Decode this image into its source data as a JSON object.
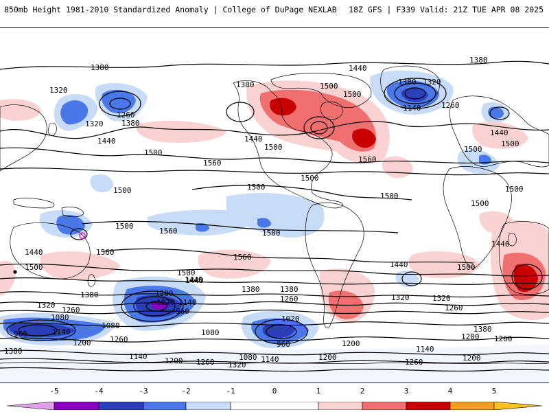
{
  "header": {
    "title": "850mb Height 1981-2010 Standardized Anomaly | College of DuPage NEXLAB",
    "run_info": "18Z GFS | F339 Valid: 21Z TUE APR 08 2025"
  },
  "colors": {
    "neg5": "#e0a0e8",
    "neg4": "#8a00c0",
    "neg3": "#2a3fb8",
    "neg2": "#4a78e8",
    "neg1": "#c8dcf8",
    "zero": "#ffffff",
    "pos1": "#fad2d2",
    "pos2": "#f07070",
    "pos3": "#c80000",
    "pos4": "#f0a020",
    "pos5": "#f8c020",
    "coast": "#000000",
    "contour": "#000000"
  },
  "colorbar": {
    "ticks": [
      "-5",
      "-4",
      "-3",
      "-2",
      "-1",
      "0",
      "1",
      "2",
      "3",
      "4",
      "5"
    ]
  },
  "contour_labels": [
    {
      "id": "l1",
      "text": "1380"
    },
    {
      "id": "l2",
      "text": "1320"
    },
    {
      "id": "l3",
      "text": "1260"
    },
    {
      "id": "l4",
      "text": "1320"
    },
    {
      "id": "l5",
      "text": "1380"
    },
    {
      "id": "l6",
      "text": "1440"
    },
    {
      "id": "l7",
      "text": "1500"
    },
    {
      "id": "l8",
      "text": "1380"
    },
    {
      "id": "l9",
      "text": "1440"
    },
    {
      "id": "l10",
      "text": "1500"
    },
    {
      "id": "l11",
      "text": "1560"
    },
    {
      "id": "l12",
      "text": "1500"
    },
    {
      "id": "l13",
      "text": "1440"
    },
    {
      "id": "l14",
      "text": "1500"
    },
    {
      "id": "l15",
      "text": "1380"
    },
    {
      "id": "l16",
      "text": "1320"
    },
    {
      "id": "l17",
      "text": "1260"
    },
    {
      "id": "l18",
      "text": "1140"
    },
    {
      "id": "l19",
      "text": "1380"
    },
    {
      "id": "l20",
      "text": "1440"
    },
    {
      "id": "l21",
      "text": "1500"
    },
    {
      "id": "l22",
      "text": "1500"
    },
    {
      "id": "l23",
      "text": "1560"
    },
    {
      "id": "l24",
      "text": "1500"
    },
    {
      "id": "l25",
      "text": "1500"
    },
    {
      "id": "l26",
      "text": "1500"
    },
    {
      "id": "l27",
      "text": "1500"
    },
    {
      "id": "l28",
      "text": "1500"
    },
    {
      "id": "l29",
      "text": "1500"
    },
    {
      "id": "l30",
      "text": "1500"
    },
    {
      "id": "l31",
      "text": "1560"
    },
    {
      "id": "l32",
      "text": "1500"
    },
    {
      "id": "l33",
      "text": "1440"
    },
    {
      "id": "l34",
      "text": "1560"
    },
    {
      "id": "l35",
      "text": "1560"
    },
    {
      "id": "l36",
      "text": "1440"
    },
    {
      "id": "l37",
      "text": "1500"
    },
    {
      "id": "l38",
      "text": "1500"
    },
    {
      "id": "l39",
      "text": "1440"
    },
    {
      "id": "l40",
      "text": "1380"
    },
    {
      "id": "l41",
      "text": "1320"
    },
    {
      "id": "l42",
      "text": "1260"
    },
    {
      "id": "l43",
      "text": "1080"
    },
    {
      "id": "l44",
      "text": "960"
    },
    {
      "id": "l45",
      "text": "1140"
    },
    {
      "id": "l46",
      "text": "1200"
    },
    {
      "id": "l47",
      "text": "1200"
    },
    {
      "id": "l48",
      "text": "1020"
    },
    {
      "id": "l49",
      "text": "1140"
    },
    {
      "id": "l50",
      "text": "960"
    },
    {
      "id": "l51",
      "text": "1080"
    },
    {
      "id": "l52",
      "text": "1080"
    },
    {
      "id": "l53",
      "text": "1260"
    },
    {
      "id": "l54",
      "text": "1440"
    },
    {
      "id": "l55",
      "text": "1380"
    },
    {
      "id": "l56",
      "text": "1260"
    },
    {
      "id": "l57",
      "text": "1020"
    },
    {
      "id": "l58",
      "text": "960"
    },
    {
      "id": "l59",
      "text": "1140"
    },
    {
      "id": "l60",
      "text": "1080"
    },
    {
      "id": "l61",
      "text": "1200"
    },
    {
      "id": "l62",
      "text": "1320"
    },
    {
      "id": "l63",
      "text": "1380"
    },
    {
      "id": "l64",
      "text": "1260"
    },
    {
      "id": "l65",
      "text": "1200"
    },
    {
      "id": "l66",
      "text": "1140"
    },
    {
      "id": "l67",
      "text": "1200"
    },
    {
      "id": "l68",
      "text": "1260"
    },
    {
      "id": "l69",
      "text": "1320"
    },
    {
      "id": "l70",
      "text": "1140"
    },
    {
      "id": "l71",
      "text": "1200"
    },
    {
      "id": "l72",
      "text": "1260"
    },
    {
      "id": "l73",
      "text": "1320"
    },
    {
      "id": "l74",
      "text": "1380"
    },
    {
      "id": "l75",
      "text": "1200"
    },
    {
      "id": "l76",
      "text": "1260"
    },
    {
      "id": "l77",
      "text": "1440"
    },
    {
      "id": "l78",
      "text": "1500"
    },
    {
      "id": "l79",
      "text": "1380"
    }
  ]
}
